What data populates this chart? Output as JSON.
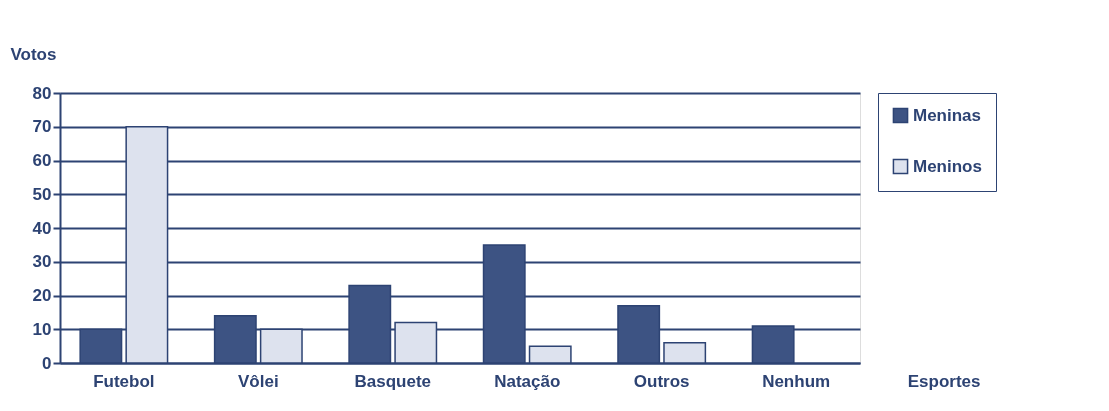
{
  "chart_data": {
    "type": "bar",
    "xlabel": "Esportes",
    "ylabel": "Votos",
    "categories": [
      "Futebol",
      "Vôlei",
      "Basquete",
      "Natação",
      "Outros",
      "Nenhum"
    ],
    "series": [
      {
        "name": "Meninas",
        "color": "#3d5383",
        "values": [
          10,
          14,
          23,
          35,
          17,
          11
        ]
      },
      {
        "name": "Meninos",
        "color": "#dde2ee",
        "values": [
          70,
          10,
          12,
          5,
          6,
          null
        ]
      }
    ],
    "ylim": [
      0,
      80
    ],
    "yticks": [
      0,
      10,
      20,
      30,
      40,
      50,
      60,
      70,
      80
    ],
    "grid": "y",
    "legend": "right"
  }
}
